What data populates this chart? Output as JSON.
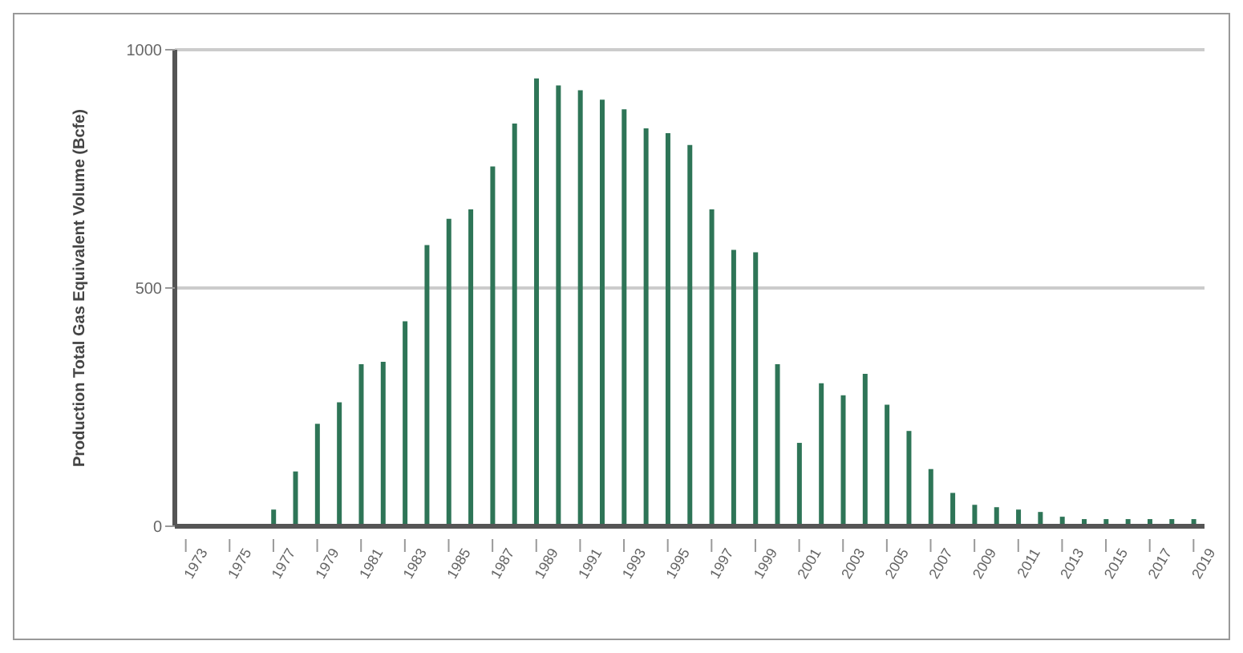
{
  "chart_data": {
    "type": "bar",
    "ylabel": "Production Total Gas Equivalent Volume (Bcfe)",
    "categories": [
      "1973",
      null,
      "1975",
      null,
      "1977",
      null,
      "1979",
      null,
      "1981",
      null,
      "1983",
      null,
      "1985",
      null,
      "1987",
      null,
      "1989",
      null,
      "1991",
      null,
      "1993",
      null,
      "1995",
      null,
      "1997",
      null,
      "1999",
      null,
      "2001",
      null,
      "2003",
      null,
      "2005",
      null,
      "2007",
      null,
      "2009",
      null,
      "2011",
      null,
      "2013",
      null,
      "2015",
      null,
      "2017",
      null,
      "2019"
    ],
    "values": [
      0,
      0,
      0,
      0,
      35,
      115,
      215,
      260,
      340,
      345,
      430,
      590,
      645,
      665,
      755,
      845,
      940,
      925,
      915,
      895,
      875,
      835,
      825,
      800,
      665,
      580,
      575,
      340,
      175,
      300,
      275,
      320,
      255,
      200,
      120,
      70,
      45,
      40,
      35,
      30,
      20,
      15,
      15,
      15,
      15,
      15,
      15
    ],
    "color": "#2e7557",
    "ylim": [
      0,
      1000
    ],
    "yticks": [
      0,
      500,
      1000
    ],
    "grid": "y"
  }
}
